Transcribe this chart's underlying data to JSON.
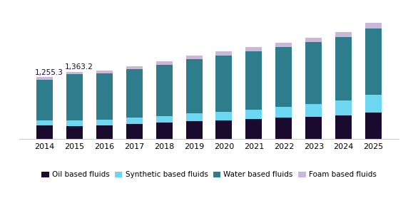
{
  "years": [
    "2014",
    "2015",
    "2016",
    "2017",
    "2018",
    "2019",
    "2020",
    "2021",
    "2022",
    "2023",
    "2024",
    "2025"
  ],
  "oil_based": [
    270,
    265,
    280,
    310,
    330,
    360,
    380,
    400,
    430,
    450,
    480,
    530
  ],
  "synthetic_based": [
    100,
    105,
    115,
    120,
    130,
    155,
    165,
    190,
    215,
    260,
    305,
    365
  ],
  "water_based": [
    835,
    938,
    930,
    985,
    1040,
    1105,
    1150,
    1190,
    1220,
    1250,
    1280,
    1340
  ],
  "foam_based": [
    50,
    55,
    58,
    62,
    68,
    75,
    80,
    85,
    90,
    95,
    105,
    115
  ],
  "annotations": [
    {
      "x": 0,
      "text": "1,255.3"
    },
    {
      "x": 1,
      "text": "1,363.2"
    }
  ],
  "colors": {
    "oil_based": "#1a0a2e",
    "synthetic_based": "#6dd6f0",
    "water_based": "#2e7d8c",
    "foam_based": "#c9b8d8"
  },
  "legend_labels": [
    "Oil based fluids",
    "Synthetic based fluids",
    "Water based fluids",
    "Foam based fluids"
  ],
  "bar_width": 0.55,
  "ylim": [
    0,
    2600
  ],
  "background_color": "#ffffff",
  "annotation_fontsize": 7.5
}
